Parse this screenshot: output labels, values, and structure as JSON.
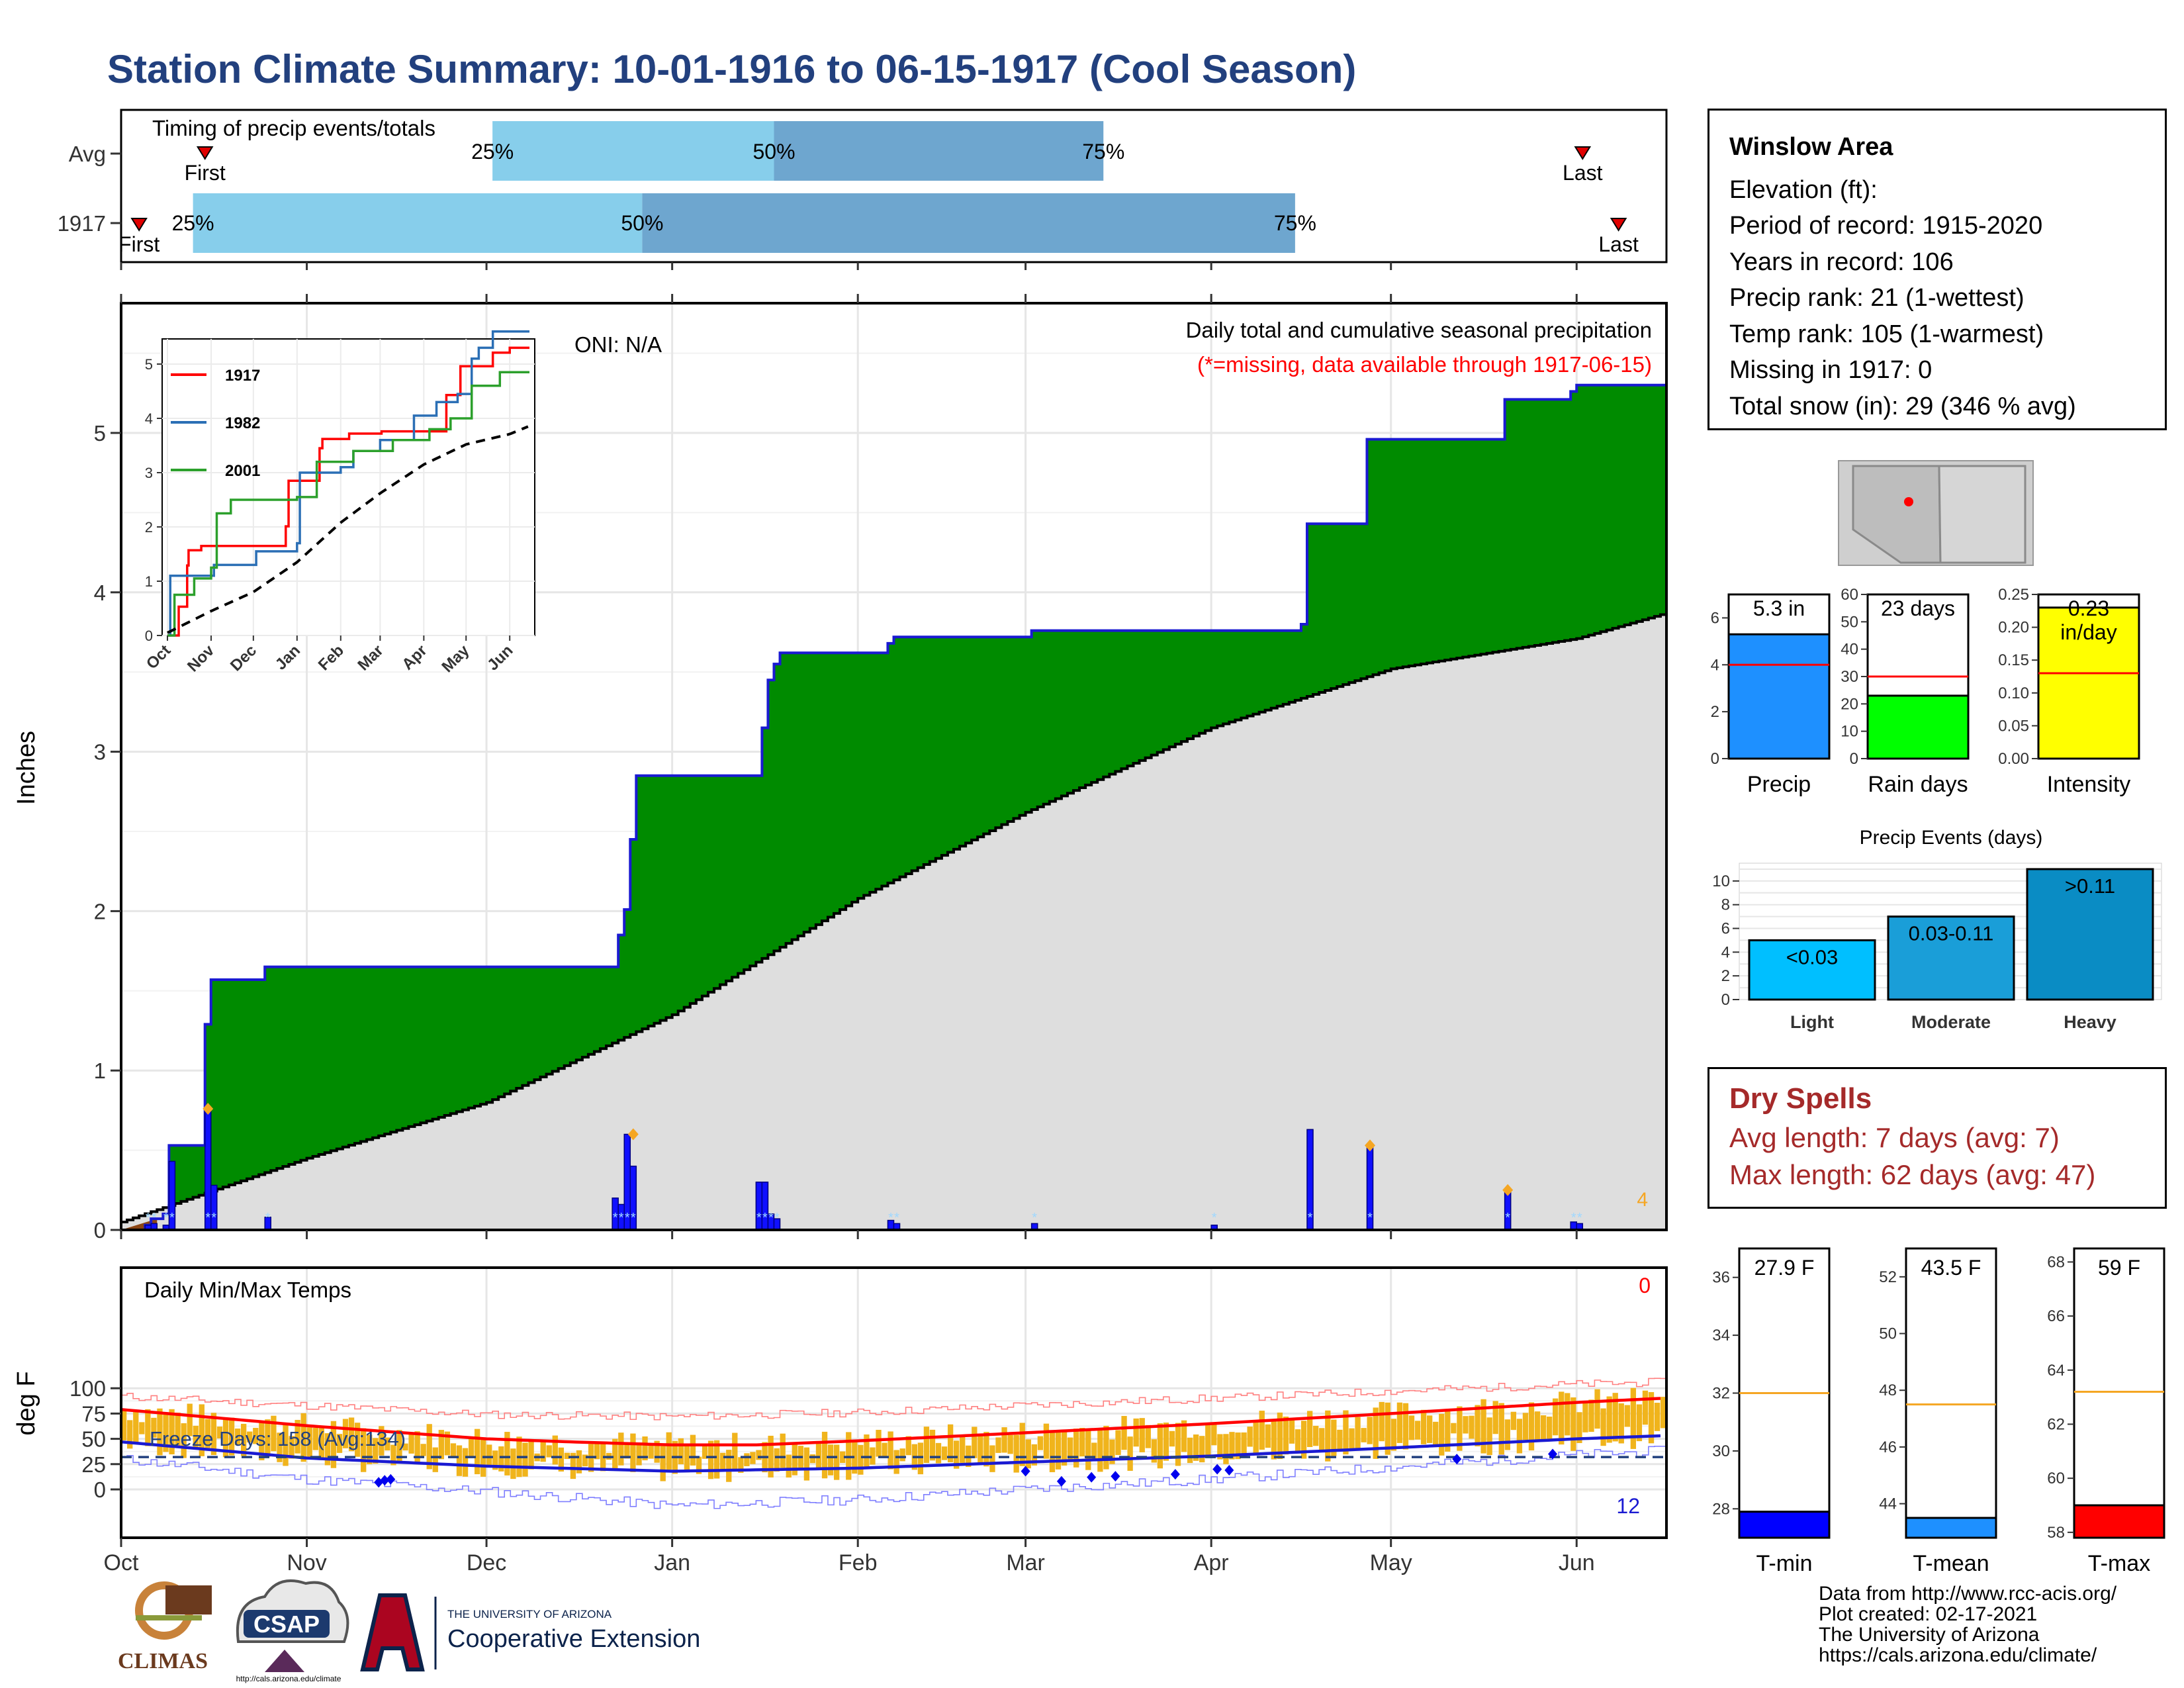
{
  "title": "Station Climate Summary: 10-01-1916 to 06-15-1917 (Cool Season)",
  "timing_panel": {
    "label": "Timing of precip events/totals",
    "rows": [
      "Avg",
      "1917"
    ],
    "first_label": "First",
    "last_label": "Last",
    "pct_labels": [
      "25%",
      "50%",
      "75%"
    ]
  },
  "station_info": {
    "name": "Winslow Area",
    "elevation": "Elevation (ft):",
    "period": "Period of record: 1915-2020",
    "years": "Years in record: 106",
    "precip_rank": "Precip rank: 21 (1-wettest)",
    "temp_rank": "Temp rank: 105 (1-warmest)",
    "missing": "Missing in 1917: 0",
    "snow": "Total snow (in): 29 (346 % avg)"
  },
  "precip_panel": {
    "ylabel": "Inches",
    "oni": "ONI: N/A",
    "title": "Daily total and cumulative seasonal precipitation",
    "note": "(*=missing, data available through 1917-06-15)",
    "corner_value": "4"
  },
  "temp_panel": {
    "ylabel": "deg F",
    "title": "Daily Min/Max Temps",
    "freeze": "Freeze Days: 158 (Avg:134)",
    "top_count": "0",
    "bottom_count": "12"
  },
  "month_labels": [
    "Oct",
    "Nov",
    "Dec",
    "Jan",
    "Feb",
    "Mar",
    "Apr",
    "May",
    "Jun"
  ],
  "inset": {
    "legend": [
      "1917",
      "1982",
      "2001"
    ],
    "month_labels": [
      "Oct",
      "Nov",
      "Dec",
      "Jan",
      "Feb",
      "Mar",
      "Apr",
      "May",
      "Jun"
    ]
  },
  "summary_bars": {
    "precip": {
      "label": "Precip",
      "value_text": "5.3 in"
    },
    "rain_days": {
      "label": "Rain days",
      "value_text": "23 days"
    },
    "intensity": {
      "label": "Intensity",
      "value_text_1": "0.23",
      "value_text_2": "in/day"
    }
  },
  "events_panel": {
    "title": "Precip Events (days)",
    "categories": [
      "Light",
      "Moderate",
      "Heavy"
    ],
    "labels": [
      "<0.03",
      "0.03-0.11",
      ">0.11"
    ]
  },
  "dry_spells": {
    "title": "Dry Spells",
    "avg": "Avg length: 7 days (avg: 7)",
    "max": "Max length: 62 days (avg: 47)"
  },
  "temp_bars": {
    "tmin": {
      "label": "T-min",
      "value_text": "27.9 F"
    },
    "tmean": {
      "label": "T-mean",
      "value_text": "43.5 F"
    },
    "tmax": {
      "label": "T-max",
      "value_text": "59 F"
    }
  },
  "logos": {
    "climas": "CLIMAS",
    "csap": "CSAP",
    "csap_url": "http://cals.arizona.edu/climate",
    "ua_small": "THE UNIVERSITY OF ARIZONA",
    "ua_big": "Cooperative Extension"
  },
  "credits": {
    "line1": "Data from http://www.rcc-acis.org/",
    "line2": "Plot created: 02-17-2021",
    "line3": "The University of Arizona",
    "line4": "https://cals.arizona.edu/climate/"
  },
  "colors": {
    "title": "#22407e",
    "green": "#008b00",
    "grey_fill": "#dedede",
    "blue_line": "#1a1ad2",
    "light_blue": "#87ceeb",
    "steel_blue": "#6ea6cf",
    "orange": "#f0b41c",
    "red": "#ff0000",
    "dry_red": "#a52a2a"
  },
  "chart_data": [
    {
      "type": "timing",
      "rows": [
        {
          "name": "Avg",
          "first": "1916-10-15",
          "p25": "1916-12-02",
          "p50": "1917-01-18",
          "p75": "1917-03-14",
          "last": "1917-06-02"
        },
        {
          "name": "1917",
          "first": "1916-10-04",
          "p25": "1916-10-13",
          "p50": "1916-12-27",
          "p75": "1917-04-15",
          "last": "1917-06-08"
        }
      ]
    },
    {
      "type": "area",
      "title": "Daily total and cumulative seasonal precipitation",
      "ylabel": "Inches",
      "ylim": [
        0,
        5.8
      ],
      "yticks": [
        0,
        1,
        2,
        3,
        4,
        5
      ],
      "cumulative_steps": [
        [
          "1916-10-01",
          0.0
        ],
        [
          "1916-10-05",
          0.03
        ],
        [
          "1916-10-06",
          0.07
        ],
        [
          "1916-10-08",
          0.1
        ],
        [
          "1916-10-09",
          0.53
        ],
        [
          "1916-10-14",
          0.53
        ],
        [
          "1916-10-15",
          1.29
        ],
        [
          "1916-10-16",
          1.57
        ],
        [
          "1916-10-24",
          1.57
        ],
        [
          "1916-10-25",
          1.65
        ],
        [
          "1916-12-22",
          1.65
        ],
        [
          "1916-12-23",
          1.85
        ],
        [
          "1916-12-24",
          2.01
        ],
        [
          "1916-12-25",
          2.45
        ],
        [
          "1916-12-26",
          2.85
        ],
        [
          "1917-01-15",
          2.85
        ],
        [
          "1917-01-16",
          3.15
        ],
        [
          "1917-01-17",
          3.45
        ],
        [
          "1917-01-18",
          3.55
        ],
        [
          "1917-01-19",
          3.62
        ],
        [
          "1917-02-05",
          3.62
        ],
        [
          "1917-02-06",
          3.68
        ],
        [
          "1917-02-07",
          3.72
        ],
        [
          "1917-03-01",
          3.72
        ],
        [
          "1917-03-02",
          3.76
        ],
        [
          "1917-04-15",
          3.76
        ],
        [
          "1917-04-16",
          3.8
        ],
        [
          "1917-04-17",
          4.43
        ],
        [
          "1917-04-26",
          4.43
        ],
        [
          "1917-04-27",
          4.96
        ],
        [
          "1917-05-19",
          4.96
        ],
        [
          "1917-05-20",
          5.21
        ],
        [
          "1917-05-30",
          5.21
        ],
        [
          "1917-05-31",
          5.26
        ],
        [
          "1917-06-01",
          5.3
        ],
        [
          "1917-06-15",
          5.3
        ]
      ],
      "average_cumulative": [
        [
          "1916-10-01",
          0.05
        ],
        [
          "1916-11-01",
          0.45
        ],
        [
          "1916-12-01",
          0.8
        ],
        [
          "1917-01-01",
          1.35
        ],
        [
          "1917-02-01",
          2.08
        ],
        [
          "1917-03-01",
          2.62
        ],
        [
          "1917-04-01",
          3.15
        ],
        [
          "1917-05-01",
          3.52
        ],
        [
          "1917-06-01",
          3.71
        ],
        [
          "1917-06-15",
          3.86
        ]
      ],
      "daily_precip": [
        [
          "1916-10-05",
          0.03
        ],
        [
          "1916-10-06",
          0.04
        ],
        [
          "1916-10-08",
          0.03
        ],
        [
          "1916-10-09",
          0.43
        ],
        [
          "1916-10-15",
          0.76
        ],
        [
          "1916-10-16",
          0.28
        ],
        [
          "1916-10-25",
          0.08
        ],
        [
          "1916-12-22",
          0.2
        ],
        [
          "1916-12-23",
          0.16
        ],
        [
          "1916-12-24",
          0.6
        ],
        [
          "1916-12-25",
          0.4
        ],
        [
          "1917-01-15",
          0.3
        ],
        [
          "1917-01-16",
          0.3
        ],
        [
          "1917-01-17",
          0.1
        ],
        [
          "1917-01-18",
          0.07
        ],
        [
          "1917-02-06",
          0.06
        ],
        [
          "1917-02-07",
          0.04
        ],
        [
          "1917-03-02",
          0.04
        ],
        [
          "1917-04-01",
          0.03
        ],
        [
          "1917-04-17",
          0.63
        ],
        [
          "1917-04-27",
          0.53
        ],
        [
          "1917-05-20",
          0.25
        ],
        [
          "1917-05-31",
          0.05
        ],
        [
          "1917-06-01",
          0.04
        ]
      ],
      "diamond_markers": [
        [
          "1916-10-15",
          0.76
        ],
        [
          "1916-12-25",
          0.6
        ],
        [
          "1917-04-27",
          0.53
        ],
        [
          "1917-05-20",
          0.25
        ]
      ]
    },
    {
      "type": "line",
      "title": "Daily min/max temps (inset cumulative)",
      "ylim": [
        0,
        5.6
      ],
      "yticks": [
        0,
        1,
        2,
        3,
        4,
        5
      ],
      "series": [
        {
          "name": "1917",
          "color": "#ff0000",
          "points": [
            [
              "1916-10-01",
              0.0
            ],
            [
              "1916-10-09",
              0.53
            ],
            [
              "1916-10-15",
              1.29
            ],
            [
              "1916-10-16",
              1.57
            ],
            [
              "1916-10-25",
              1.65
            ],
            [
              "1916-12-24",
              2.01
            ],
            [
              "1916-12-26",
              2.85
            ],
            [
              "1917-01-17",
              3.45
            ],
            [
              "1917-01-19",
              3.62
            ],
            [
              "1917-02-07",
              3.72
            ],
            [
              "1917-03-02",
              3.76
            ],
            [
              "1917-04-17",
              4.43
            ],
            [
              "1917-04-27",
              4.96
            ],
            [
              "1917-05-20",
              5.21
            ],
            [
              "1917-06-01",
              5.3
            ],
            [
              "1917-06-15",
              5.3
            ]
          ]
        },
        {
          "name": "1982",
          "color": "#2b6fb5",
          "points": [
            [
              "1916-10-01",
              0.0
            ],
            [
              "1916-10-03",
              1.1
            ],
            [
              "1916-11-01",
              1.1
            ],
            [
              "1916-11-03",
              1.3
            ],
            [
              "1916-12-01",
              1.3
            ],
            [
              "1916-12-03",
              1.55
            ],
            [
              "1917-01-01",
              1.7
            ],
            [
              "1917-01-03",
              3.0
            ],
            [
              "1917-02-01",
              3.1
            ],
            [
              "1917-02-10",
              3.4
            ],
            [
              "1917-03-01",
              3.6
            ],
            [
              "1917-03-25",
              4.05
            ],
            [
              "1917-04-10",
              4.3
            ],
            [
              "1917-04-25",
              4.45
            ],
            [
              "1917-05-05",
              5.1
            ],
            [
              "1917-05-10",
              5.3
            ],
            [
              "1917-05-20",
              5.6
            ],
            [
              "1917-06-15",
              5.6
            ]
          ]
        },
        {
          "name": "2001",
          "color": "#2ca02c",
          "points": [
            [
              "1916-10-01",
              0.0
            ],
            [
              "1916-10-06",
              0.75
            ],
            [
              "1916-10-20",
              1.05
            ],
            [
              "1916-11-01",
              1.25
            ],
            [
              "1916-11-05",
              2.25
            ],
            [
              "1916-11-15",
              2.5
            ],
            [
              "1917-01-01",
              2.55
            ],
            [
              "1917-01-15",
              3.2
            ],
            [
              "1917-02-10",
              3.4
            ],
            [
              "1917-03-10",
              3.6
            ],
            [
              "1917-04-05",
              3.8
            ],
            [
              "1917-04-20",
              4.0
            ],
            [
              "1917-05-05",
              4.6
            ],
            [
              "1917-05-25",
              4.85
            ],
            [
              "1917-06-15",
              4.85
            ]
          ]
        },
        {
          "name": "Average",
          "color": "#000000",
          "dashed": true,
          "points": [
            [
              "1916-10-01",
              0.05
            ],
            [
              "1916-11-01",
              0.45
            ],
            [
              "1916-12-01",
              0.8
            ],
            [
              "1917-01-01",
              1.35
            ],
            [
              "1917-02-01",
              2.08
            ],
            [
              "1917-03-01",
              2.62
            ],
            [
              "1917-04-01",
              3.15
            ],
            [
              "1917-05-01",
              3.52
            ],
            [
              "1917-06-01",
              3.71
            ],
            [
              "1917-06-15",
              3.86
            ]
          ]
        }
      ]
    },
    {
      "type": "bar",
      "title": "Daily Min/Max Temps",
      "ylabel": "deg F",
      "ylim": [
        -24,
        110
      ],
      "yticks": [
        0,
        25,
        50,
        75,
        100
      ],
      "freeze_line": 32,
      "avg_max": [
        [
          "1916-10-01",
          79
        ],
        [
          "1916-11-01",
          63
        ],
        [
          "1916-12-01",
          50
        ],
        [
          "1916-12-15",
          47
        ],
        [
          "1917-01-01",
          44
        ],
        [
          "1917-01-15",
          44
        ],
        [
          "1917-02-01",
          48
        ],
        [
          "1917-03-01",
          56
        ],
        [
          "1917-04-01",
          65
        ],
        [
          "1917-05-01",
          75
        ],
        [
          "1917-06-01",
          86
        ],
        [
          "1917-06-15",
          90
        ]
      ],
      "avg_min": [
        [
          "1916-10-01",
          47
        ],
        [
          "1916-11-01",
          31
        ],
        [
          "1916-12-01",
          23
        ],
        [
          "1917-01-01",
          18
        ],
        [
          "1917-02-01",
          21
        ],
        [
          "1917-03-01",
          27
        ],
        [
          "1917-04-01",
          33
        ],
        [
          "1917-05-01",
          41
        ],
        [
          "1917-06-01",
          50
        ],
        [
          "1917-06-15",
          53
        ]
      ],
      "record_max": [
        [
          "1916-10-01",
          92
        ],
        [
          "1916-11-01",
          83
        ],
        [
          "1916-12-01",
          74
        ],
        [
          "1917-01-01",
          72
        ],
        [
          "1917-02-01",
          76
        ],
        [
          "1917-03-01",
          83
        ],
        [
          "1917-04-01",
          90
        ],
        [
          "1917-05-01",
          97
        ],
        [
          "1917-06-01",
          104
        ],
        [
          "1917-06-15",
          106
        ]
      ],
      "record_min": [
        [
          "1916-10-01",
          30
        ],
        [
          "1916-11-01",
          10
        ],
        [
          "1916-12-01",
          -2
        ],
        [
          "1917-01-01",
          -16
        ],
        [
          "1917-02-01",
          -10
        ],
        [
          "1917-03-01",
          0
        ],
        [
          "1917-04-01",
          10
        ],
        [
          "1917-05-01",
          22
        ],
        [
          "1917-06-01",
          34
        ],
        [
          "1917-06-15",
          38
        ]
      ],
      "freeze_day_markers": [
        [
          "1916-11-13",
          7
        ],
        [
          "1916-11-14",
          9
        ],
        [
          "1916-11-15",
          10
        ],
        [
          "1917-03-01",
          18
        ],
        [
          "1917-03-07",
          8
        ],
        [
          "1917-03-12",
          12
        ],
        [
          "1917-03-16",
          13
        ],
        [
          "1917-03-26",
          15
        ],
        [
          "1917-04-02",
          20
        ],
        [
          "1917-04-04",
          19
        ],
        [
          "1917-05-12",
          30
        ],
        [
          "1917-05-28",
          35
        ]
      ]
    },
    {
      "type": "bar",
      "title": "Precip",
      "categories": [
        "Precip"
      ],
      "values": [
        5.3
      ],
      "average": 4.0,
      "ylim": [
        0,
        7
      ],
      "yticks": [
        0,
        2,
        4,
        6
      ]
    },
    {
      "type": "bar",
      "title": "Rain days",
      "categories": [
        "Rain days"
      ],
      "values": [
        23
      ],
      "average": 30,
      "ylim": [
        0,
        60
      ],
      "yticks": [
        0,
        10,
        20,
        30,
        40,
        50,
        60
      ]
    },
    {
      "type": "bar",
      "title": "Intensity",
      "categories": [
        "Intensity"
      ],
      "values": [
        0.23
      ],
      "average": 0.13,
      "ylim": [
        0,
        0.25
      ],
      "yticks": [
        0.0,
        0.05,
        0.1,
        0.15,
        0.2,
        0.25
      ]
    },
    {
      "type": "bar",
      "title": "Precip Events (days)",
      "categories": [
        "Light",
        "Moderate",
        "Heavy"
      ],
      "values": [
        5,
        7,
        11
      ],
      "ylim": [
        0,
        11.5
      ],
      "yticks": [
        0,
        2,
        4,
        6,
        8,
        10
      ]
    },
    {
      "type": "bar",
      "title": "T-min",
      "categories": [
        "T-min"
      ],
      "values": [
        27.9
      ],
      "average": 32,
      "ylim": [
        27,
        37
      ],
      "yticks": [
        28,
        30,
        32,
        34,
        36
      ]
    },
    {
      "type": "bar",
      "title": "T-mean",
      "categories": [
        "T-mean"
      ],
      "values": [
        43.5
      ],
      "average": 47.5,
      "ylim": [
        42.8,
        53
      ],
      "yticks": [
        44,
        46,
        48,
        50,
        52
      ]
    },
    {
      "type": "bar",
      "title": "T-max",
      "categories": [
        "T-max"
      ],
      "values": [
        59
      ],
      "average": 63.2,
      "ylim": [
        57.8,
        68.5
      ],
      "yticks": [
        58,
        60,
        62,
        64,
        66,
        68
      ]
    }
  ]
}
